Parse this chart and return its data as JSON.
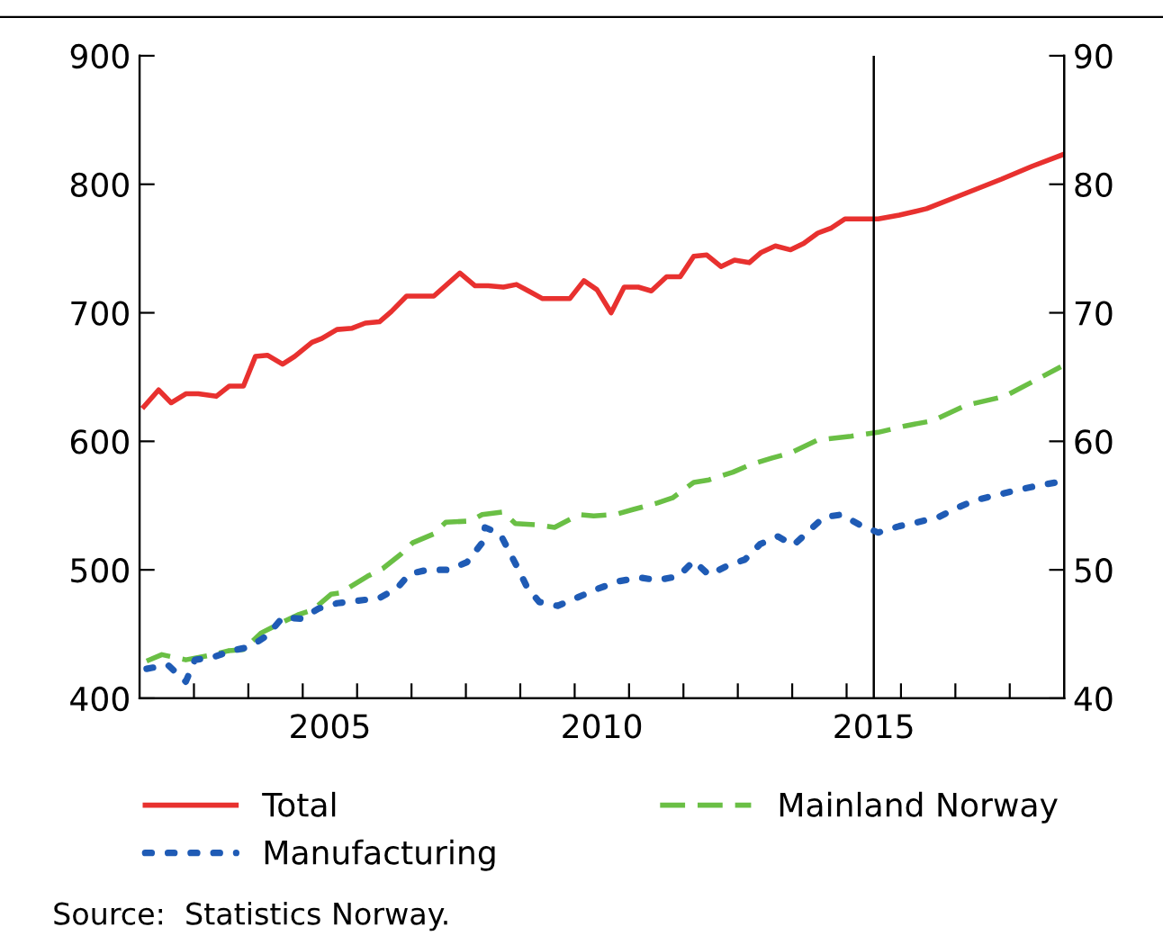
{
  "chart_data": {
    "type": "line",
    "xlim": [
      2002,
      2019
    ],
    "xticks": [
      {
        "value": 2003,
        "label": null
      },
      {
        "value": 2004,
        "label": null
      },
      {
        "value": 2005,
        "label": null
      },
      {
        "value": 2005.5,
        "label": "2005"
      },
      {
        "value": 2006,
        "label": null
      },
      {
        "value": 2007,
        "label": null
      },
      {
        "value": 2008,
        "label": null
      },
      {
        "value": 2009,
        "label": null
      },
      {
        "value": 2010,
        "label": null
      },
      {
        "value": 2010.5,
        "label": "2010"
      },
      {
        "value": 2011,
        "label": null
      },
      {
        "value": 2012,
        "label": null
      },
      {
        "value": 2013,
        "label": null
      },
      {
        "value": 2014,
        "label": null
      },
      {
        "value": 2015,
        "label": null
      },
      {
        "value": 2015.5,
        "label": "2015"
      },
      {
        "value": 2016,
        "label": null
      },
      {
        "value": 2017,
        "label": null
      },
      {
        "value": 2018,
        "label": null
      }
    ],
    "ylim": [
      400,
      900
    ],
    "yticks": [
      400,
      500,
      600,
      700,
      800,
      900
    ],
    "y2lim": [
      40,
      90
    ],
    "y2ticks": [
      40,
      50,
      60,
      70,
      80,
      90
    ],
    "grid": false,
    "legend": "bottom",
    "ref_lines": [
      {
        "axis": "x",
        "value": 2015.5,
        "color": "#000000"
      }
    ],
    "annotations": [
      "Source:  Statistics Norway."
    ],
    "series": [
      {
        "name": "Total",
        "color": "#e8312f",
        "line_style": "solid",
        "x": [
          2002.08,
          2002.35,
          2002.58,
          2002.85,
          2003.08,
          2003.41,
          2003.65,
          2003.91,
          2004.13,
          2004.35,
          2004.63,
          2004.85,
          2005.17,
          2005.35,
          2005.63,
          2005.91,
          2006.15,
          2006.41,
          2006.63,
          2006.91,
          2007.41,
          2007.89,
          2008.17,
          2008.41,
          2008.69,
          2008.93,
          2009.15,
          2009.41,
          2009.91,
          2010.17,
          2010.41,
          2010.67,
          2010.91,
          2011.17,
          2011.41,
          2011.69,
          2011.94,
          2012.19,
          2012.43,
          2012.69,
          2012.94,
          2013.21,
          2013.43,
          2013.69,
          2013.97,
          2014.21,
          2014.47,
          2014.72,
          2014.97,
          2015.24,
          2015.58,
          2015.97,
          2016.47,
          2017.19,
          2017.85,
          2018.41,
          2018.97
        ],
        "values": [
          627,
          640,
          630,
          637,
          637,
          635,
          643,
          643,
          666,
          667,
          660,
          666,
          677,
          680,
          687,
          688,
          692,
          693,
          701,
          713,
          713,
          731,
          721,
          721,
          720,
          722,
          717,
          711,
          711,
          725,
          718,
          700,
          720,
          720,
          717,
          728,
          728,
          744,
          745,
          736,
          741,
          739,
          747,
          752,
          749,
          754,
          762,
          766,
          773,
          773,
          773,
          776,
          781,
          793,
          804,
          814,
          823
        ]
      },
      {
        "name": "Manufacturing",
        "color": "#1f5bb5",
        "line_style": "dotted",
        "axis": "y2",
        "x": [
          2002.13,
          2002.52,
          2002.85,
          2003.02,
          2003.35,
          2003.69,
          2004.02,
          2004.35,
          2004.63,
          2004.97,
          2005.3,
          2005.63,
          2006.02,
          2006.41,
          2006.74,
          2006.97,
          2007.3,
          2007.69,
          2008.02,
          2008.3,
          2008.35,
          2008.63,
          2008.97,
          2009.13,
          2009.35,
          2009.69,
          2010.08,
          2010.41,
          2010.8,
          2011.19,
          2011.52,
          2011.91,
          2012.19,
          2012.47,
          2012.8,
          2013.13,
          2013.41,
          2013.74,
          2014.02,
          2014.3,
          2014.58,
          2014.91,
          2015.24,
          2015.58,
          2015.97,
          2016.3,
          2016.69,
          2017.02,
          2017.35,
          2017.74,
          2018.13,
          2018.46,
          2018.85
        ],
        "values": [
          42.3,
          42.6,
          41.3,
          43.0,
          43.2,
          43.7,
          44.0,
          44.9,
          46.3,
          46.2,
          47.0,
          47.4,
          47.6,
          47.8,
          48.6,
          49.7,
          50.0,
          50.0,
          50.6,
          52.1,
          53.3,
          52.8,
          50.0,
          48.6,
          47.5,
          47.2,
          47.9,
          48.5,
          49.1,
          49.4,
          49.2,
          49.5,
          50.7,
          49.6,
          50.3,
          50.8,
          52.0,
          52.6,
          51.9,
          53.0,
          54.1,
          54.3,
          53.5,
          52.9,
          53.4,
          53.7,
          54.1,
          54.8,
          55.4,
          55.8,
          56.2,
          56.5,
          56.8
        ]
      },
      {
        "name": "Mainland Norway",
        "color": "#6abf45",
        "line_style": "dashed",
        "x": [
          2002.13,
          2002.41,
          2002.85,
          2003.35,
          2003.63,
          2003.91,
          2004.24,
          2004.52,
          2004.91,
          2005.19,
          2005.52,
          2005.69,
          2006.19,
          2006.47,
          2006.8,
          2007.02,
          2007.41,
          2007.63,
          2008.08,
          2008.3,
          2008.69,
          2008.91,
          2009.3,
          2009.63,
          2010.08,
          2010.35,
          2010.74,
          2011.08,
          2011.52,
          2011.8,
          2012.19,
          2012.47,
          2012.91,
          2013.24,
          2013.63,
          2013.97,
          2014.47,
          2015.08,
          2015.58,
          2016.08,
          2016.58,
          2017.19,
          2017.91,
          2018.94
        ],
        "values": [
          429,
          434,
          430,
          434,
          437,
          438,
          451,
          457,
          465,
          469,
          481,
          482,
          495,
          501,
          512,
          521,
          528,
          537,
          538,
          543,
          545,
          536,
          535,
          533,
          543,
          542,
          543,
          547,
          552,
          556,
          568,
          570,
          576,
          582,
          587,
          591,
          601,
          604,
          607,
          612,
          616,
          628,
          635,
          658
        ]
      }
    ]
  }
}
